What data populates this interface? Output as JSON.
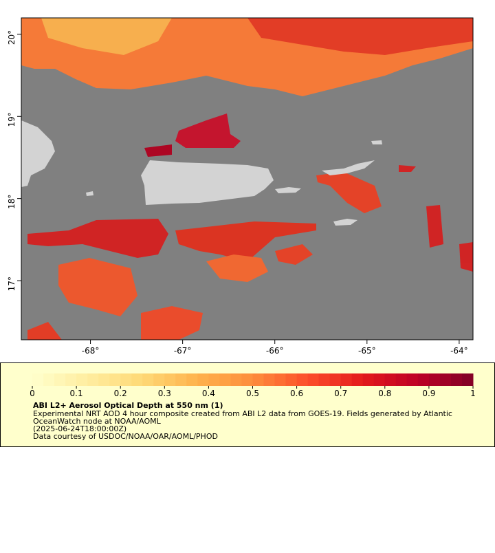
{
  "map": {
    "xlim": [
      -68.75,
      -63.85
    ],
    "ylim": [
      16.28,
      20.2
    ],
    "xticks": [
      {
        "value": -68,
        "label": "-68°"
      },
      {
        "value": -67,
        "label": "-67°"
      },
      {
        "value": -66,
        "label": "-66°"
      },
      {
        "value": -65,
        "label": "-65°"
      },
      {
        "value": -64,
        "label": "-64°"
      }
    ],
    "yticks": [
      {
        "value": 17,
        "label": "17°"
      },
      {
        "value": 18,
        "label": "18°"
      },
      {
        "value": 19,
        "label": "19°"
      },
      {
        "value": 20,
        "label": "20°"
      }
    ],
    "ocean_color": "#808080",
    "land_color": "#d3d3d3"
  },
  "colorbar": {
    "clim": [
      0,
      1
    ],
    "ticks": [
      0,
      0.1,
      0.2,
      0.3,
      0.4,
      0.5,
      0.6,
      0.7,
      0.8,
      0.9,
      1
    ],
    "colors": [
      "#ffffcc",
      "#ffeda0",
      "#fed976",
      "#feb24c",
      "#fd8d3c",
      "#fc4e2a",
      "#e31a1c",
      "#bd0026",
      "#800026"
    ]
  },
  "legend": {
    "title": "ABI L2+ Aerosol Optical Depth at 550 nm (1)",
    "lines": [
      "Experimental NRT AOD 4 hour composite created from ABI L2 data from GOES-19. Fields generated by Atlantic",
      "OceanWatch node at NOAA/AOML",
      "(2025-06-24T18:00:00Z)",
      "Data courtesy of USDOC/NOAA/OAR/AOML/PHOD"
    ]
  }
}
